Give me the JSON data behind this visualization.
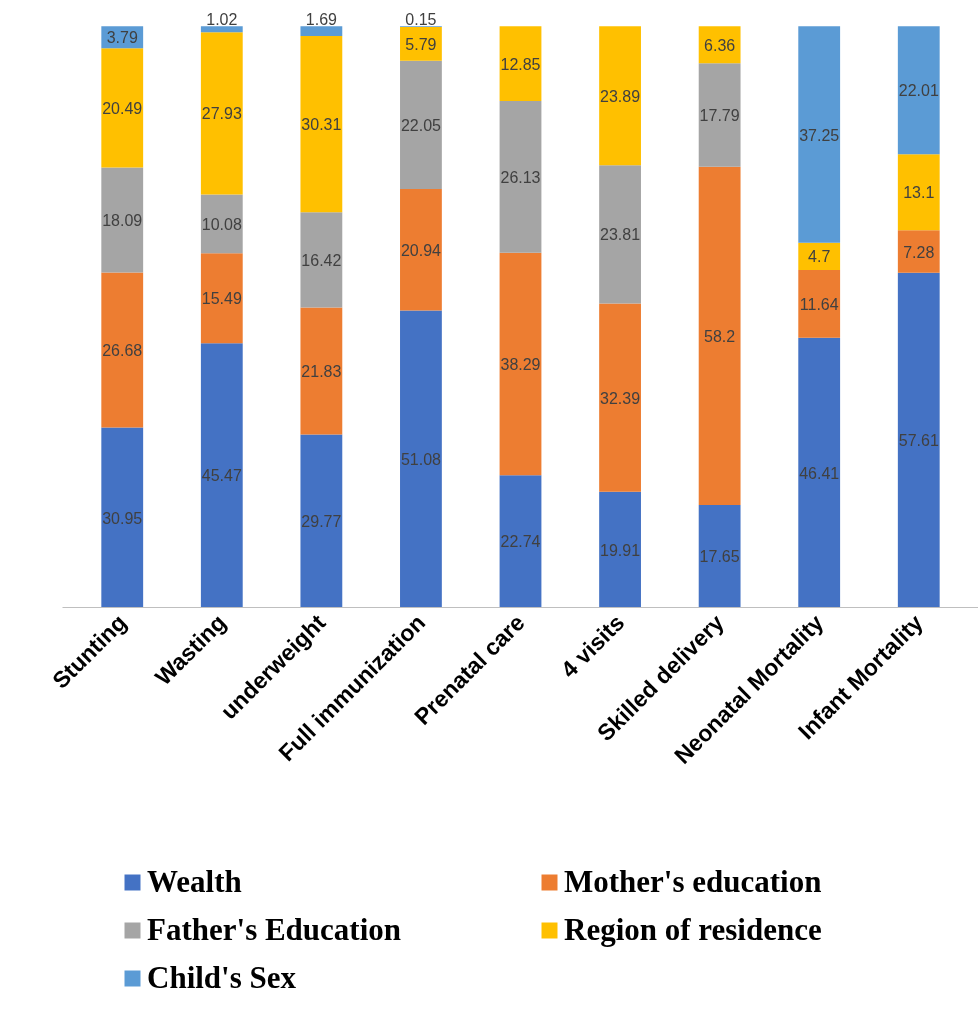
{
  "chart_data": {
    "type": "bar",
    "stacked": true,
    "data_labels": true,
    "legend": "bottom",
    "grid": false,
    "tick_labels": "x",
    "categories": [
      "Stunting",
      "Wasting",
      "underweight",
      "Full immunization",
      "Prenatal care",
      "4 visits",
      "Skilled delivery",
      "Neonatal Mortality",
      "Infant Mortality"
    ],
    "series": [
      {
        "name": "Wealth",
        "color": "#4472c4",
        "values": [
          30.95,
          45.47,
          29.77,
          51.08,
          22.74,
          19.91,
          17.65,
          46.41,
          57.61
        ]
      },
      {
        "name": "Mother's education",
        "color": "#ed7d31",
        "values": [
          26.68,
          15.49,
          21.83,
          20.94,
          38.29,
          32.39,
          58.2,
          11.64,
          7.28
        ]
      },
      {
        "name": "Father's Education",
        "color": "#a5a5a5",
        "values": [
          18.09,
          10.08,
          16.42,
          22.05,
          26.13,
          23.81,
          17.79,
          null,
          null
        ]
      },
      {
        "name": "Region of residence",
        "color": "#ffc000",
        "values": [
          20.49,
          27.93,
          30.31,
          5.79,
          12.85,
          23.89,
          6.36,
          4.7,
          13.1
        ]
      },
      {
        "name": "Child's Sex",
        "color": "#5b9bd5",
        "values": [
          3.79,
          1.02,
          1.69,
          0.15,
          null,
          null,
          null,
          37.25,
          22.01
        ]
      }
    ]
  }
}
